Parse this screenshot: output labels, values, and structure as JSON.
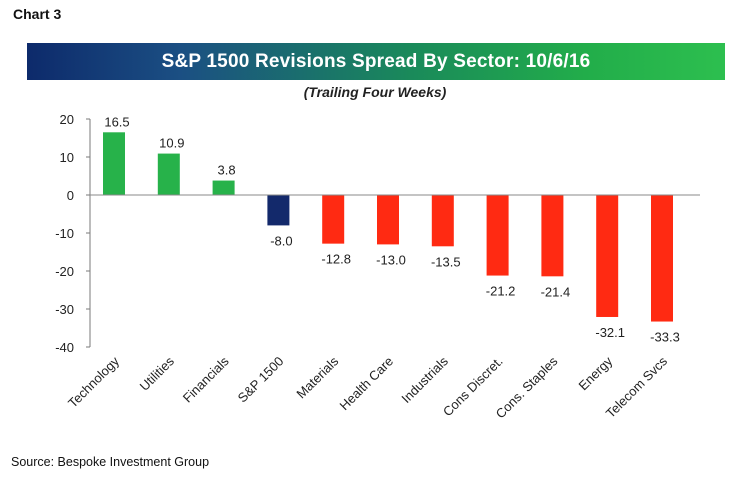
{
  "figure_label": "Chart 3",
  "source": "Source: Bespoke Investment Group",
  "chart_data": {
    "type": "bar",
    "title": "S&P 1500 Revisions Spread By Sector: 10/6/16",
    "subtitle": "(Trailing Four Weeks)",
    "categories": [
      "Technology",
      "Utilities",
      "Financials",
      "S&P 1500",
      "Materials",
      "Health Care",
      "Industrials",
      "Cons Discret.",
      "Cons. Staples",
      "Energy",
      "Telecom Svcs"
    ],
    "values": [
      16.5,
      10.9,
      3.8,
      -8.0,
      -12.8,
      -13.0,
      -13.5,
      -21.2,
      -21.4,
      -32.1,
      -33.3
    ],
    "value_labels": [
      "16.5",
      "10.9",
      "3.8",
      "-8.0",
      "-12.8",
      "-13.0",
      "-13.5",
      "-21.2",
      "-21.4",
      "-32.1",
      "-33.3"
    ],
    "ylim": [
      -40,
      20
    ],
    "yticks": [
      20,
      10,
      0,
      -10,
      -20,
      -30,
      -40
    ],
    "xlabel": "",
    "ylabel": "",
    "grid": false,
    "legend": "none",
    "colors": {
      "positive": "#27b24a",
      "index": "#13296b",
      "negative": "#ff2a12",
      "title_bar_start": "#0d2a6b",
      "title_bar_end": "#2dbf4f"
    }
  }
}
